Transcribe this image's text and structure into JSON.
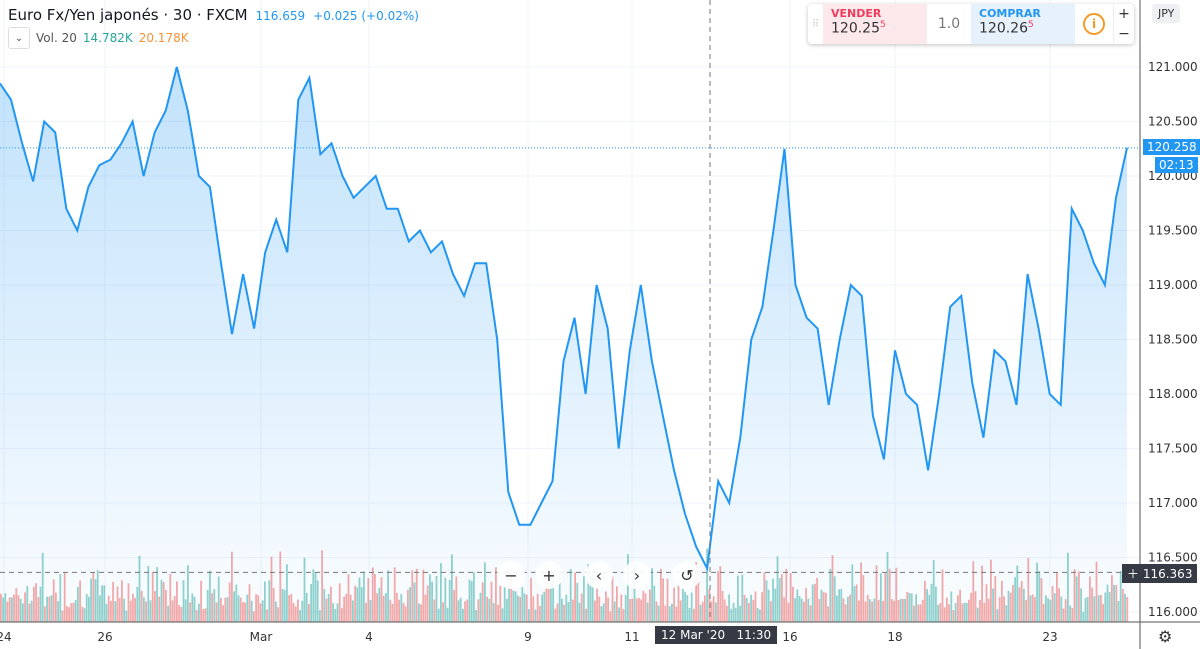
{
  "legend": {
    "title": "Euro Fx/Yen japonés · 30 · FXCM",
    "price": "116.659",
    "change": "+0.025 (+0.02%)"
  },
  "volume": {
    "label": "Vol. 20",
    "value1": "14.782K",
    "value2": "20.178K"
  },
  "trade": {
    "sell_label": "VENDER",
    "sell_price": "120.25",
    "sell_sup": "5",
    "qty": "1.0",
    "buy_label": "COMPRAR",
    "buy_price": "120.26",
    "buy_sup": "5",
    "plus": "+",
    "minus": "−"
  },
  "currency": "JPY",
  "tags": {
    "last_price": "120.258",
    "countdown": "02:13",
    "crosshair_price": "116.363",
    "crosshair_time": "12 Mar '20   11:30"
  },
  "nav": {
    "zoom_out": "−",
    "zoom_in": "+",
    "left": "‹",
    "right": "›",
    "reset": "↺"
  },
  "colors": {
    "line": "#2196f3",
    "up": "#26a69a",
    "down": "#ef5350"
  },
  "chart_data": {
    "type": "area",
    "title": "Euro Fx/Yen japonés · 30 · FXCM",
    "ylim": [
      115.9,
      121.1
    ],
    "yticks": [
      "121.000",
      "120.500",
      "120.000",
      "119.500",
      "119.000",
      "118.500",
      "118.000",
      "117.500",
      "117.000",
      "116.500",
      "116.000"
    ],
    "xticks": [
      "24",
      "26",
      "Mar",
      "4",
      "9",
      "11",
      "16",
      "18",
      "23"
    ],
    "values": [
      120.85,
      120.7,
      120.3,
      119.95,
      120.5,
      120.4,
      119.7,
      119.5,
      119.9,
      120.1,
      120.15,
      120.3,
      120.5,
      120.0,
      120.4,
      120.6,
      121.0,
      120.6,
      120.0,
      119.9,
      119.2,
      118.55,
      119.1,
      118.6,
      119.3,
      119.6,
      119.3,
      120.7,
      120.9,
      120.2,
      120.3,
      120.0,
      119.8,
      119.9,
      120.0,
      119.7,
      119.7,
      119.4,
      119.5,
      119.3,
      119.4,
      119.1,
      118.9,
      119.2,
      119.2,
      118.5,
      117.1,
      116.8,
      116.8,
      117.0,
      117.2,
      118.3,
      118.7,
      118.0,
      119.0,
      118.6,
      117.5,
      118.4,
      119.0,
      118.3,
      117.8,
      117.3,
      116.9,
      116.6,
      116.4,
      117.2,
      117.0,
      117.6,
      118.5,
      118.8,
      119.5,
      120.25,
      119.0,
      118.7,
      118.6,
      117.9,
      118.5,
      119.0,
      118.9,
      117.8,
      117.4,
      118.4,
      118.0,
      117.9,
      117.3,
      118.0,
      118.8,
      118.9,
      118.1,
      117.6,
      118.4,
      118.3,
      117.9,
      119.1,
      118.6,
      118.0,
      117.9,
      119.7,
      119.5,
      119.2,
      119.0,
      119.8,
      120.26
    ],
    "last": 120.258,
    "crosshair_price": 116.363
  }
}
